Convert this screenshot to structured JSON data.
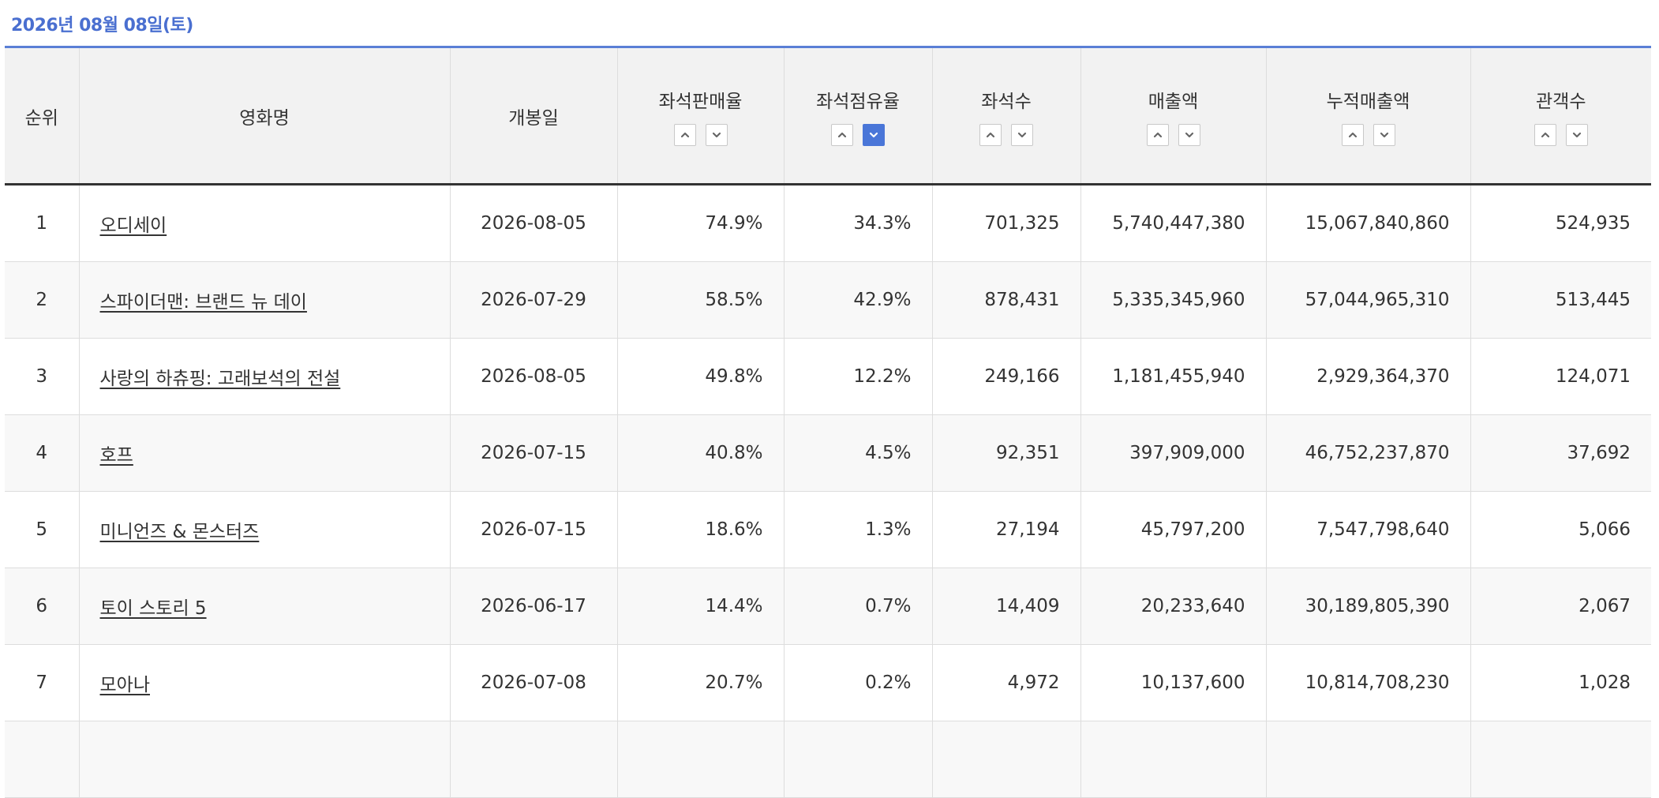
{
  "date": "2026년 08월 08일(토)",
  "columns": {
    "rank": "순위",
    "title": "영화명",
    "open_date": "개봉일",
    "seat_sales_rate": "좌석판매율",
    "seat_share": "좌석점유율",
    "seats": "좌석수",
    "revenue": "매출액",
    "cumulative_revenue": "누적매출액",
    "audience": "관객수"
  },
  "sort_state": {
    "active_column": "seat_share",
    "direction": "descending"
  },
  "colors": {
    "accent": "#4a6fd0",
    "active_sort": "#4a76d8"
  },
  "rows": [
    {
      "rank": "1",
      "title": "오디세이",
      "open_date": "2026-08-05",
      "seat_sales_rate": "74.9%",
      "seat_share": "34.3%",
      "seats": "701,325",
      "revenue": "5,740,447,380",
      "cumulative_revenue": "15,067,840,860",
      "audience": "524,935"
    },
    {
      "rank": "2",
      "title": "스파이더맨: 브랜드 뉴 데이",
      "open_date": "2026-07-29",
      "seat_sales_rate": "58.5%",
      "seat_share": "42.9%",
      "seats": "878,431",
      "revenue": "5,335,345,960",
      "cumulative_revenue": "57,044,965,310",
      "audience": "513,445"
    },
    {
      "rank": "3",
      "title": "사랑의 하츄핑: 고래보석의 전설",
      "open_date": "2026-08-05",
      "seat_sales_rate": "49.8%",
      "seat_share": "12.2%",
      "seats": "249,166",
      "revenue": "1,181,455,940",
      "cumulative_revenue": "2,929,364,370",
      "audience": "124,071"
    },
    {
      "rank": "4",
      "title": "호프",
      "open_date": "2026-07-15",
      "seat_sales_rate": "40.8%",
      "seat_share": "4.5%",
      "seats": "92,351",
      "revenue": "397,909,000",
      "cumulative_revenue": "46,752,237,870",
      "audience": "37,692"
    },
    {
      "rank": "5",
      "title": "미니언즈 & 몬스터즈",
      "open_date": "2026-07-15",
      "seat_sales_rate": "18.6%",
      "seat_share": "1.3%",
      "seats": "27,194",
      "revenue": "45,797,200",
      "cumulative_revenue": "7,547,798,640",
      "audience": "5,066"
    },
    {
      "rank": "6",
      "title": "토이 스토리 5",
      "open_date": "2026-06-17",
      "seat_sales_rate": "14.4%",
      "seat_share": "0.7%",
      "seats": "14,409",
      "revenue": "20,233,640",
      "cumulative_revenue": "30,189,805,390",
      "audience": "2,067"
    },
    {
      "rank": "7",
      "title": "모아나",
      "open_date": "2026-07-08",
      "seat_sales_rate": "20.7%",
      "seat_share": "0.2%",
      "seats": "4,972",
      "revenue": "10,137,600",
      "cumulative_revenue": "10,814,708,230",
      "audience": "1,028"
    },
    {
      "rank": "",
      "title": "",
      "open_date": "",
      "seat_sales_rate": "",
      "seat_share": "",
      "seats": "",
      "revenue": "",
      "cumulative_revenue": "",
      "audience": ""
    }
  ]
}
